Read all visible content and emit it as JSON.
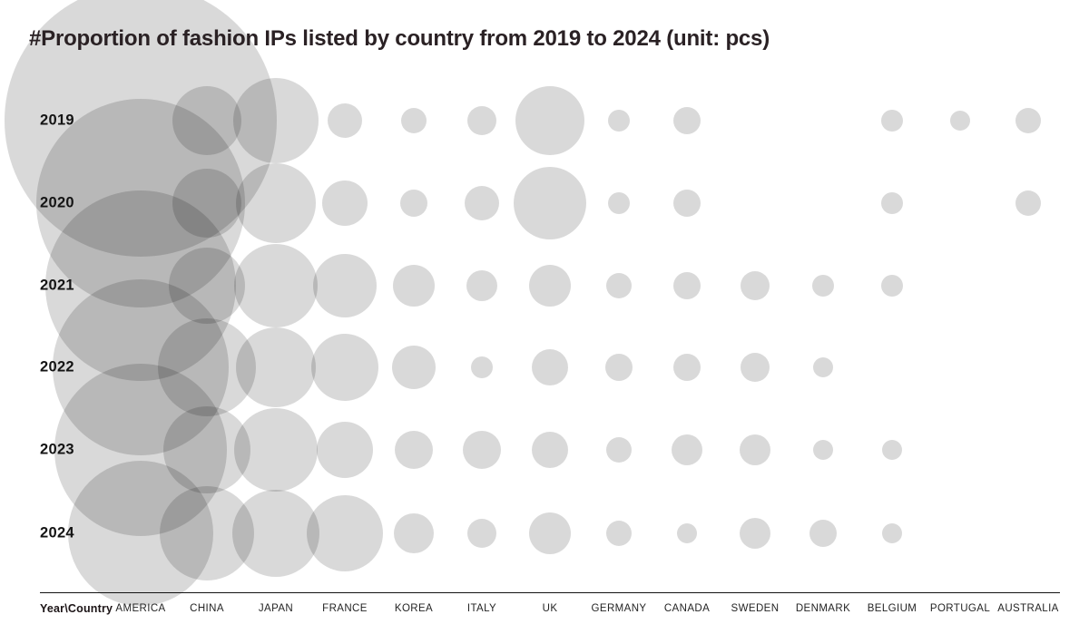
{
  "title": "#Proportion of fashion IPs listed by country from 2019 to 2024 (unit: pcs)",
  "axis": {
    "corner_label": "Year\\Country",
    "years": [
      "2019",
      "2020",
      "2021",
      "2022",
      "2023",
      "2024"
    ],
    "countries": [
      "AMERICA",
      "CHINA",
      "JAPAN",
      "FRANCE",
      "KOREA",
      "ITALY",
      "UK",
      "GERMANY",
      "CANADA",
      "SWEDEN",
      "DENMARK",
      "BELGIUM",
      "PORTUGAL",
      "AUSTRALIA"
    ]
  },
  "chart_data": {
    "type": "bubble",
    "title": "#Proportion of fashion IPs listed by country from 2019 to 2024 (unit: pcs)",
    "unit": "pcs",
    "y_categories": [
      "2019",
      "2020",
      "2021",
      "2022",
      "2023",
      "2024"
    ],
    "x_categories": [
      "AMERICA",
      "CHINA",
      "JAPAN",
      "FRANCE",
      "KOREA",
      "ITALY",
      "UK",
      "GERMANY",
      "CANADA",
      "SWEDEN",
      "DENMARK",
      "BELGIUM",
      "PORTUGAL",
      "AUSTRALIA"
    ],
    "value_encoding": "bubble radius in screen pixels; no numeric labels are printed on the chart; 0 means no bubble",
    "radius_px_matrix": [
      [
        150,
        38,
        47,
        19,
        14,
        16,
        38,
        12,
        15,
        0,
        0,
        12,
        11,
        14
      ],
      [
        115,
        38,
        44,
        25,
        15,
        19,
        40,
        12,
        15,
        0,
        0,
        12,
        0,
        14
      ],
      [
        105,
        42,
        46,
        35,
        23,
        17,
        23,
        14,
        15,
        16,
        12,
        12,
        0,
        0
      ],
      [
        97,
        54,
        44,
        37,
        24,
        12,
        20,
        15,
        15,
        16,
        11,
        0,
        0,
        0
      ],
      [
        95,
        48,
        46,
        31,
        21,
        21,
        20,
        14,
        17,
        17,
        11,
        11,
        0,
        0
      ],
      [
        80,
        52,
        48,
        42,
        22,
        16,
        23,
        14,
        11,
        17,
        15,
        11,
        0,
        0
      ]
    ],
    "bubble_color": "#d9d9d9",
    "overlap_blend": "translucent black circles (15% opacity) darken where they overlap",
    "background_color": "#ffffff",
    "grid": false,
    "legend": false
  }
}
